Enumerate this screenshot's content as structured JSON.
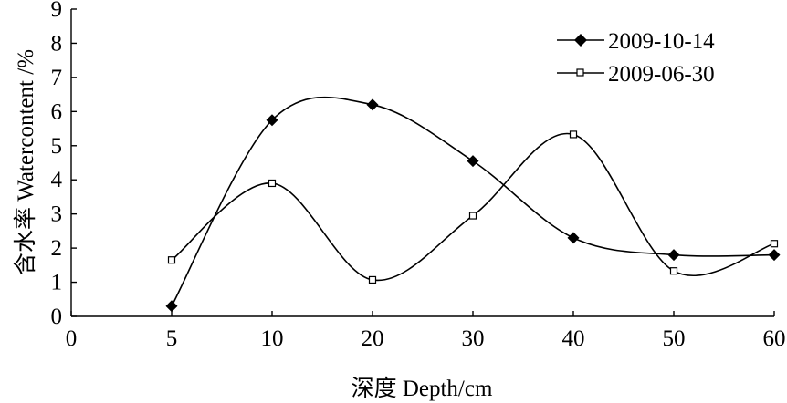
{
  "chart_data": {
    "type": "line",
    "xlabel": "深度 Depth/cm",
    "ylabel": "含水率 Watercontent /%",
    "x_ticks": [
      "0",
      "5",
      "10",
      "20",
      "30",
      "40",
      "50",
      "60"
    ],
    "y_ticks": [
      "0",
      "1",
      "2",
      "3",
      "4",
      "5",
      "6",
      "7",
      "8",
      "9"
    ],
    "x_categories": [
      "5",
      "10",
      "20",
      "30",
      "40",
      "50",
      "60"
    ],
    "ylim": [
      0,
      9
    ],
    "grid": false,
    "smooth": true,
    "legend_position": "top-right",
    "series": [
      {
        "name": "2009-10-14",
        "marker": "filled-diamond",
        "color": "#000000",
        "values": [
          0.3,
          5.75,
          6.2,
          4.55,
          2.3,
          1.8,
          1.8
        ]
      },
      {
        "name": "2009-06-30",
        "marker": "open-square",
        "color": "#000000",
        "values": [
          1.65,
          3.9,
          1.07,
          2.95,
          5.33,
          1.33,
          2.13
        ]
      }
    ]
  }
}
